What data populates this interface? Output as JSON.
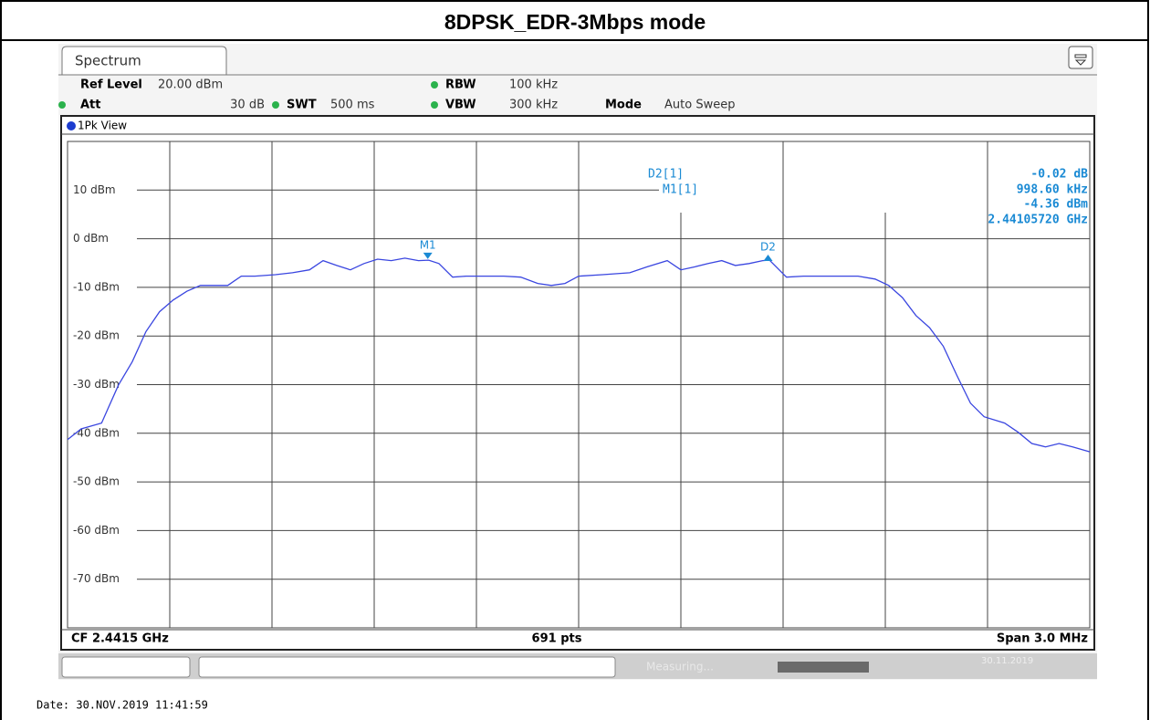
{
  "header": {
    "title": "8DPSK_EDR-3Mbps mode"
  },
  "instrument": {
    "tab": "Spectrum",
    "settings": [
      {
        "label": "Ref Level",
        "value": "20.00 dBm"
      },
      {
        "label": "Att",
        "value": "30 dB"
      },
      {
        "label": "SWT",
        "value": "500 ms"
      },
      {
        "label": "RBW",
        "value": "100 kHz"
      },
      {
        "label": "VBW",
        "value": "300 kHz"
      },
      {
        "label": "Mode",
        "value": "Auto Sweep"
      }
    ],
    "view": "1Pk View",
    "footer": {
      "left": "CF 2.4415 GHz",
      "center": "691 pts",
      "right": "Span 3.0 MHz"
    },
    "status": {
      "text": "Measuring...",
      "date": "30.11.2019"
    },
    "date": "Date: 30.NOV.2019  11:41:59"
  },
  "chart_data": {
    "type": "line",
    "color": "#3a46e0",
    "xlim": [
      2.44,
      2.443
    ],
    "ylim": [
      -80,
      20
    ],
    "yticks": [
      {
        "value": 10,
        "label": "10 dBm"
      },
      {
        "value": 0,
        "label": "0 dBm"
      },
      {
        "value": -10,
        "label": "-10 dBm"
      },
      {
        "value": -20,
        "label": "-20 dBm"
      },
      {
        "value": -30,
        "label": "-30 dBm"
      },
      {
        "value": -40,
        "label": "-40 dBm"
      },
      {
        "value": -50,
        "label": "-50 dBm"
      },
      {
        "value": -60,
        "label": "-60 dBm"
      },
      {
        "value": -70,
        "label": "-70 dBm"
      }
    ],
    "grid": true,
    "x": [
      2.44,
      2.44004,
      2.4401,
      2.44012,
      2.44015,
      2.44019,
      2.44023,
      2.44027,
      2.44031,
      2.44035,
      2.44039,
      2.44043,
      2.44047,
      2.44051,
      2.44055,
      2.44061,
      2.44066,
      2.44071,
      2.44075,
      2.44079,
      2.44083,
      2.44087,
      2.44091,
      2.44095,
      2.44099,
      2.44103,
      2.44106,
      2.44109,
      2.44113,
      2.44117,
      2.44122,
      2.44128,
      2.44133,
      2.44138,
      2.44142,
      2.44146,
      2.4415,
      2.44157,
      2.44165,
      2.4417,
      2.44176,
      2.4418,
      2.44184,
      2.44188,
      2.44192,
      2.44196,
      2.442,
      2.44204,
      2.44206,
      2.44211,
      2.44216,
      2.44221,
      2.44227,
      2.44232,
      2.44237,
      2.44241,
      2.44245,
      2.44249,
      2.44253,
      2.44257,
      2.44261,
      2.44265,
      2.44269,
      2.44275,
      2.44279,
      2.44283,
      2.44287,
      2.44291,
      2.44295,
      2.443
    ],
    "values": [
      -41.3,
      -39.1,
      -37.9,
      -34.7,
      -30.0,
      -25.3,
      -19.1,
      -15.0,
      -12.6,
      -10.8,
      -9.6,
      -9.6,
      -9.6,
      -7.7,
      -7.7,
      -7.4,
      -7.0,
      -6.4,
      -4.5,
      -5.5,
      -6.4,
      -5.1,
      -4.2,
      -4.5,
      -4.0,
      -4.5,
      -4.4,
      -5.1,
      -7.9,
      -7.7,
      -7.7,
      -7.7,
      -7.9,
      -9.2,
      -9.6,
      -9.2,
      -7.7,
      -7.4,
      -7.0,
      -5.8,
      -4.5,
      -6.4,
      -5.8,
      -5.1,
      -4.5,
      -5.5,
      -5.1,
      -4.5,
      -4.4,
      -7.9,
      -7.7,
      -7.7,
      -7.7,
      -7.7,
      -8.3,
      -9.6,
      -12.1,
      -15.8,
      -18.3,
      -22.1,
      -28.1,
      -33.8,
      -36.6,
      -37.9,
      -39.8,
      -42.1,
      -42.8,
      -42.1,
      -42.8,
      -43.8
    ],
    "markers": [
      {
        "label": "M1",
        "readout": "M1[1]",
        "x": 2.4410572,
        "value": -4.36,
        "value_label": "-4.36 dBm",
        "x_label": "2.44105720 GHz"
      },
      {
        "label": "D2",
        "readout": "D2[1]",
        "x_delta": 0.0009986,
        "delta": -0.02,
        "delta_label": "-0.02 dB",
        "x_delta_label": "998.60 kHz"
      }
    ]
  }
}
